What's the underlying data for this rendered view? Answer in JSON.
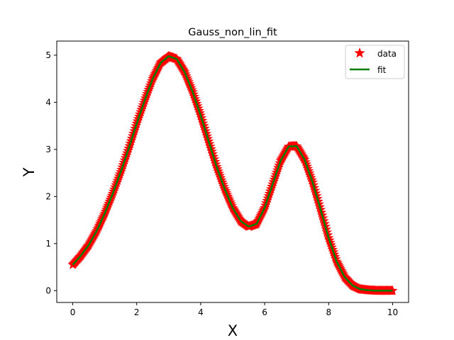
{
  "chart_data": {
    "type": "line",
    "title": "Gauss_non_lin_fit",
    "xlabel": "X",
    "ylabel": "Y",
    "xlim": [
      -0.5,
      10.5
    ],
    "ylim": [
      -0.25,
      5.3
    ],
    "xticks": [
      0,
      2,
      4,
      6,
      8,
      10
    ],
    "yticks": [
      0,
      1,
      2,
      3,
      4,
      5
    ],
    "grid": false,
    "legend_position": "top-right",
    "series": [
      {
        "name": "data",
        "kind": "scatter",
        "marker": "star",
        "color": "#ff0000",
        "x": [
          0.0,
          0.25,
          0.5,
          0.75,
          1.0,
          1.25,
          1.5,
          1.75,
          2.0,
          2.25,
          2.5,
          2.75,
          3.0,
          3.25,
          3.5,
          3.75,
          4.0,
          4.25,
          4.5,
          4.75,
          5.0,
          5.25,
          5.5,
          5.75,
          6.0,
          6.25,
          6.5,
          6.75,
          7.0,
          7.25,
          7.5,
          7.75,
          8.0,
          8.25,
          8.5,
          8.75,
          9.0,
          9.25,
          9.5,
          9.75,
          10.0
        ],
        "y": [
          0.55,
          0.74,
          0.97,
          1.27,
          1.64,
          2.06,
          2.52,
          3.02,
          3.55,
          4.04,
          4.5,
          4.84,
          4.98,
          4.92,
          4.64,
          4.22,
          3.72,
          3.17,
          2.63,
          2.16,
          1.76,
          1.48,
          1.36,
          1.42,
          1.76,
          2.26,
          2.76,
          3.06,
          3.07,
          2.78,
          2.3,
          1.72,
          1.12,
          0.62,
          0.29,
          0.11,
          0.03,
          0.01,
          0.0,
          0.0,
          0.0
        ]
      },
      {
        "name": "fit",
        "kind": "line",
        "color": "#008000",
        "x": [
          0.0,
          0.25,
          0.5,
          0.75,
          1.0,
          1.25,
          1.5,
          1.75,
          2.0,
          2.25,
          2.5,
          2.75,
          3.0,
          3.25,
          3.5,
          3.75,
          4.0,
          4.25,
          4.5,
          4.75,
          5.0,
          5.25,
          5.5,
          5.75,
          6.0,
          6.25,
          6.5,
          6.75,
          7.0,
          7.25,
          7.5,
          7.75,
          8.0,
          8.25,
          8.5,
          8.75,
          9.0,
          9.25,
          9.5,
          9.75,
          10.0
        ],
        "y": [
          0.55,
          0.74,
          0.97,
          1.27,
          1.64,
          2.06,
          2.52,
          3.02,
          3.55,
          4.04,
          4.5,
          4.84,
          4.98,
          4.92,
          4.64,
          4.22,
          3.72,
          3.17,
          2.63,
          2.16,
          1.76,
          1.48,
          1.36,
          1.42,
          1.76,
          2.26,
          2.76,
          3.06,
          3.07,
          2.78,
          2.3,
          1.72,
          1.12,
          0.62,
          0.29,
          0.11,
          0.03,
          0.01,
          0.0,
          0.0,
          0.0
        ]
      }
    ]
  }
}
